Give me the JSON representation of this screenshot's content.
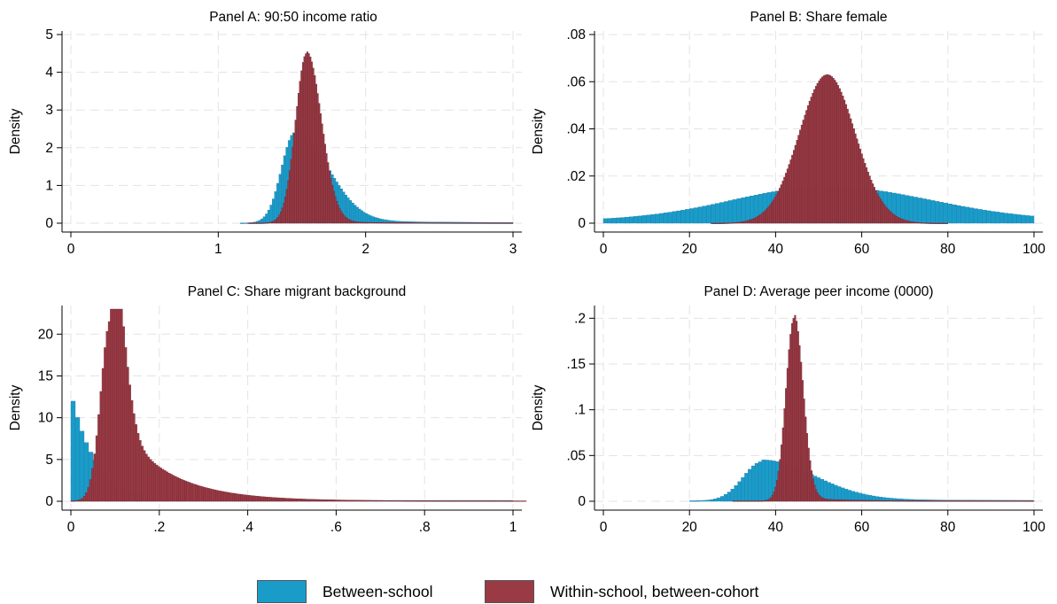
{
  "colors": {
    "between": "#1a9cc9",
    "between_edge": "#1f78a8",
    "within": "#9a3a44",
    "within_edge": "#6e2530",
    "grid": "#e3e3e3"
  },
  "legend": {
    "between_label": "Between-school",
    "within_label": "Within-school, between-cohort"
  },
  "chart_data": [
    {
      "type": "bar",
      "title": "Panel A: 90:50 income ratio",
      "ylabel": "Density",
      "xlabel": "",
      "xlim": [
        0,
        3
      ],
      "ylim": [
        0,
        5
      ],
      "xticks": [
        "0",
        "1",
        "2",
        "3"
      ],
      "xtick_values": [
        0,
        1,
        2,
        3
      ],
      "yticks": [
        "0",
        "1",
        "2",
        "3",
        "4",
        "5"
      ],
      "ytick_values": [
        0,
        1,
        2,
        3,
        4,
        5
      ],
      "grid": true,
      "series": [
        {
          "name": "Between-school",
          "x_range": [
            0,
            3
          ],
          "shape": {
            "kind": "skew",
            "mode": 1.52,
            "sd_left": 0.09,
            "sd_right": 0.22,
            "peak": 2.4,
            "floor": 0.005,
            "lo": 1.15,
            "hi": 3.0,
            "tail": 0.03
          },
          "bins": 120
        },
        {
          "name": "Within-school, between-cohort",
          "x_range": [
            0,
            3
          ],
          "shape": {
            "kind": "skew",
            "mode": 1.6,
            "sd_left": 0.075,
            "sd_right": 0.1,
            "peak": 4.5,
            "floor": 0.005,
            "lo": 1.2,
            "hi": 3.0,
            "tail": 0.01
          },
          "bins": 180
        }
      ]
    },
    {
      "type": "bar",
      "title": "Panel B: Share female",
      "ylabel": "Density",
      "xlabel": "",
      "xlim": [
        0,
        100
      ],
      "ylim": [
        0,
        0.08
      ],
      "xticks": [
        "0",
        "20",
        "40",
        "60",
        "80",
        "100"
      ],
      "xtick_values": [
        0,
        20,
        40,
        60,
        80,
        100
      ],
      "yticks": [
        "0",
        ".02",
        ".04",
        ".06",
        ".08"
      ],
      "ytick_values": [
        0,
        0.02,
        0.04,
        0.06,
        0.08
      ],
      "grid": true,
      "series": [
        {
          "name": "Between-school",
          "x_range": [
            0,
            100
          ],
          "shape": {
            "kind": "skew",
            "mode": 52,
            "sd_left": 22,
            "sd_right": 24,
            "peak": 0.0145,
            "floor": 0.001,
            "lo": 0,
            "hi": 100,
            "tail": 0
          },
          "bins": 100
        },
        {
          "name": "Within-school, between-cohort",
          "x_range": [
            0,
            100
          ],
          "shape": {
            "kind": "skew",
            "mode": 52,
            "sd_left": 6.5,
            "sd_right": 6.5,
            "peak": 0.063,
            "floor": 0,
            "lo": 25,
            "hi": 80,
            "tail": 0
          },
          "bins": 150
        }
      ]
    },
    {
      "type": "bar",
      "title": "Panel C: Share migrant background",
      "ylabel": "Density",
      "xlabel": "",
      "xlim": [
        0,
        1
      ],
      "ylim": [
        0,
        23
      ],
      "xticks": [
        "0",
        ".2",
        ".4",
        ".6",
        ".8",
        "1"
      ],
      "xtick_values": [
        0,
        0.2,
        0.4,
        0.6,
        0.8,
        1
      ],
      "yticks": [
        "0",
        "5",
        "10",
        "15",
        "20"
      ],
      "ytick_values": [
        0,
        5,
        10,
        15,
        20
      ],
      "grid": true,
      "series": [
        {
          "name": "Between-school",
          "x_range": [
            0,
            1
          ],
          "shape": {
            "kind": "decay",
            "start": 13,
            "rate": 18,
            "floor": 0.1,
            "lo": 0,
            "hi": 1,
            "tail": 0.4
          },
          "bins": 100
        },
        {
          "name": "Within-school, between-cohort",
          "x_range": [
            0,
            1
          ],
          "shape": {
            "kind": "skew",
            "mode": 0.09,
            "sd_left": 0.022,
            "sd_right": 0.028,
            "peak": 21.7,
            "floor": 0.05,
            "lo": 0,
            "hi": 1.03,
            "tail": 0.5
          },
          "bins": 220
        }
      ]
    },
    {
      "type": "bar",
      "title": "Panel D: Average peer income (0000)",
      "ylabel": "Density",
      "xlabel": "",
      "xlim": [
        0,
        100
      ],
      "ylim": [
        0,
        0.21
      ],
      "xticks": [
        "0",
        "20",
        "40",
        "60",
        "80",
        "100"
      ],
      "xtick_values": [
        0,
        20,
        40,
        60,
        80,
        100
      ],
      "yticks": [
        "0",
        ".05",
        ".1",
        ".15",
        ".2"
      ],
      "ytick_values": [
        0,
        0.05,
        0.1,
        0.15,
        0.2
      ],
      "grid": true,
      "series": [
        {
          "name": "Between-school",
          "x_range": [
            0,
            100
          ],
          "shape": {
            "kind": "skew",
            "mode": 37,
            "sd_left": 4.5,
            "sd_right": 12,
            "peak": 0.043,
            "floor": 0.0005,
            "lo": 20,
            "hi": 100,
            "tail": 0.04
          },
          "bins": 100
        },
        {
          "name": "Within-school, between-cohort",
          "x_range": [
            0,
            100
          ],
          "shape": {
            "kind": "skew",
            "mode": 44.3,
            "sd_left": 1.9,
            "sd_right": 2.1,
            "peak": 0.2,
            "floor": 0.0005,
            "lo": 30,
            "hi": 100,
            "tail": 0.02
          },
          "bins": 200
        }
      ]
    }
  ]
}
